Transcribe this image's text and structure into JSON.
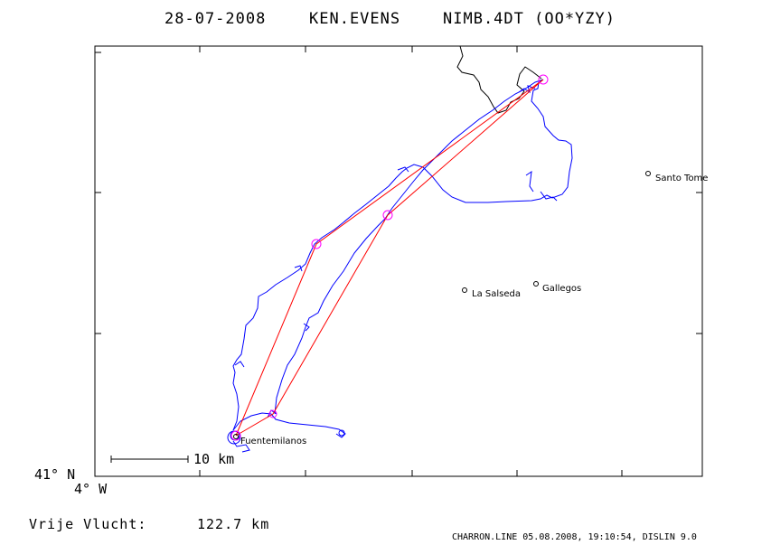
{
  "header": {
    "date": "28-07-2008",
    "pilot": "KEN.EVENS",
    "glider": "NIMB.4DT (OO*YZY)"
  },
  "map": {
    "lat_label": "41° N",
    "lon_label": "4° W",
    "scale_label": "10 km",
    "track_color": "#0000ff",
    "task_color": "#ff0000",
    "turnpoint_color": "#ff00ff",
    "terrain_color": "#000000",
    "places": [
      {
        "name": "Santo Tome"
      },
      {
        "name": "La Salseda"
      },
      {
        "name": "Gallegos"
      },
      {
        "name": "Fuentemilanos"
      }
    ]
  },
  "footer": {
    "distance_label": "Vrije Vlucht:",
    "distance_value": "122.7 km",
    "credits": "CHARRON.LINE 05.08.2008, 19:10:54, DISLIN 9.0"
  }
}
